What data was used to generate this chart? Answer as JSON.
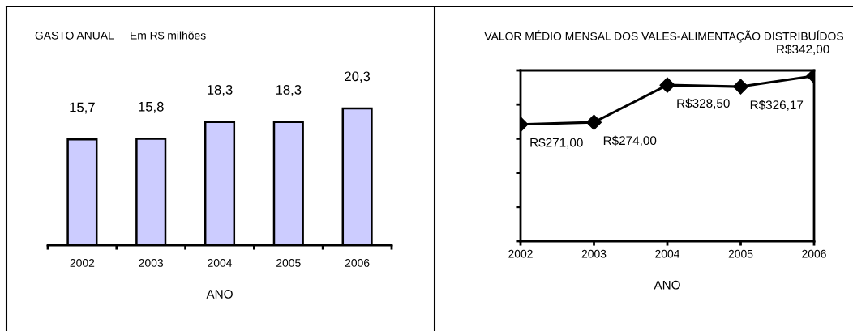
{
  "chart_data": [
    {
      "type": "bar",
      "title": "GASTO ANUAL",
      "subtitle": "Em R$ milhões",
      "xlabel": "ANO",
      "categories": [
        "2002",
        "2003",
        "2004",
        "2005",
        "2006"
      ],
      "values": [
        15.7,
        15.8,
        18.3,
        18.3,
        20.3
      ],
      "value_labels": [
        "15,7",
        "15,8",
        "18,3",
        "18,3",
        "20,3"
      ],
      "color": "#ccccff",
      "grid": false,
      "legend": false
    },
    {
      "type": "line",
      "title": "VALOR MÉDIO MENSAL DOS VALES-ALIMENTAÇÃO DISTRIBUÍDOS",
      "xlabel": "ANO",
      "categories": [
        "2002",
        "2003",
        "2004",
        "2005",
        "2006"
      ],
      "values": [
        271.0,
        274.0,
        328.5,
        326.17,
        342.0
      ],
      "value_labels": [
        "R$271,00",
        "R$274,00",
        "R$328,50",
        "R$326,17",
        "R$342,00"
      ],
      "color": "#000000",
      "marker": "diamond",
      "line_style": "solid",
      "ylim": [
        100,
        350
      ],
      "yticks": [
        {
          "value": 100,
          "label": null
        },
        {
          "value": 150,
          "label": null
        },
        {
          "value": 200,
          "label": null
        },
        {
          "value": 250,
          "label": null
        },
        {
          "value": 300,
          "label": null
        },
        {
          "value": 350,
          "label": null
        }
      ],
      "tick_labels": "x",
      "grid": false,
      "legend": false
    }
  ]
}
